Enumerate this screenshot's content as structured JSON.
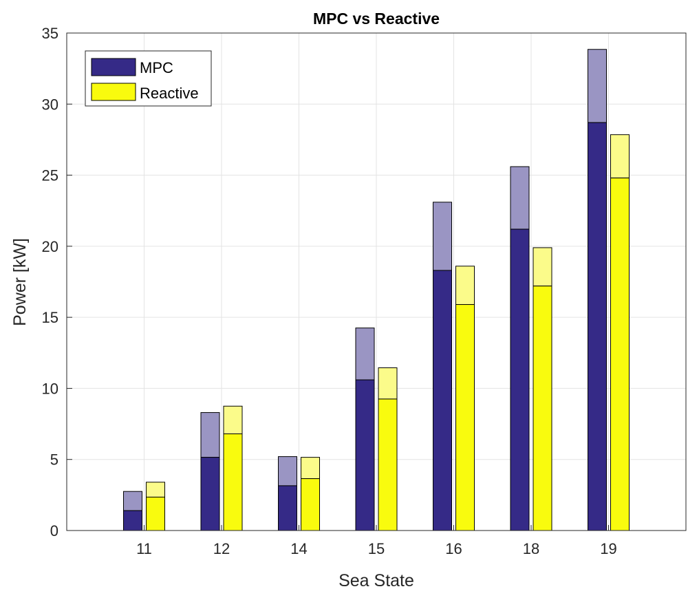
{
  "chart_data": {
    "type": "bar",
    "title": "MPC vs Reactive",
    "xlabel": "Sea State",
    "ylabel": "Power [kW]",
    "categories": [
      "11",
      "12",
      "14",
      "15",
      "16",
      "18",
      "19"
    ],
    "ylim": [
      0,
      35
    ],
    "yticks": [
      0,
      5,
      10,
      15,
      20,
      25,
      30,
      35
    ],
    "grid": true,
    "legend_position": "top-left",
    "series": [
      {
        "name": "MPC",
        "color": "#352a87",
        "upper_color": "#9a95c3",
        "values": [
          1.4,
          5.15,
          3.15,
          10.6,
          18.3,
          21.2,
          28.7
        ],
        "upper_values": [
          2.75,
          8.3,
          5.2,
          14.25,
          23.1,
          25.6,
          33.85
        ]
      },
      {
        "name": "Reactive",
        "color": "#f9fb0e",
        "upper_color": "#fbfb8a",
        "values": [
          2.35,
          6.8,
          3.65,
          9.25,
          15.9,
          17.2,
          24.8
        ],
        "upper_values": [
          3.4,
          8.75,
          5.15,
          11.45,
          18.6,
          19.9,
          27.85
        ]
      }
    ]
  }
}
